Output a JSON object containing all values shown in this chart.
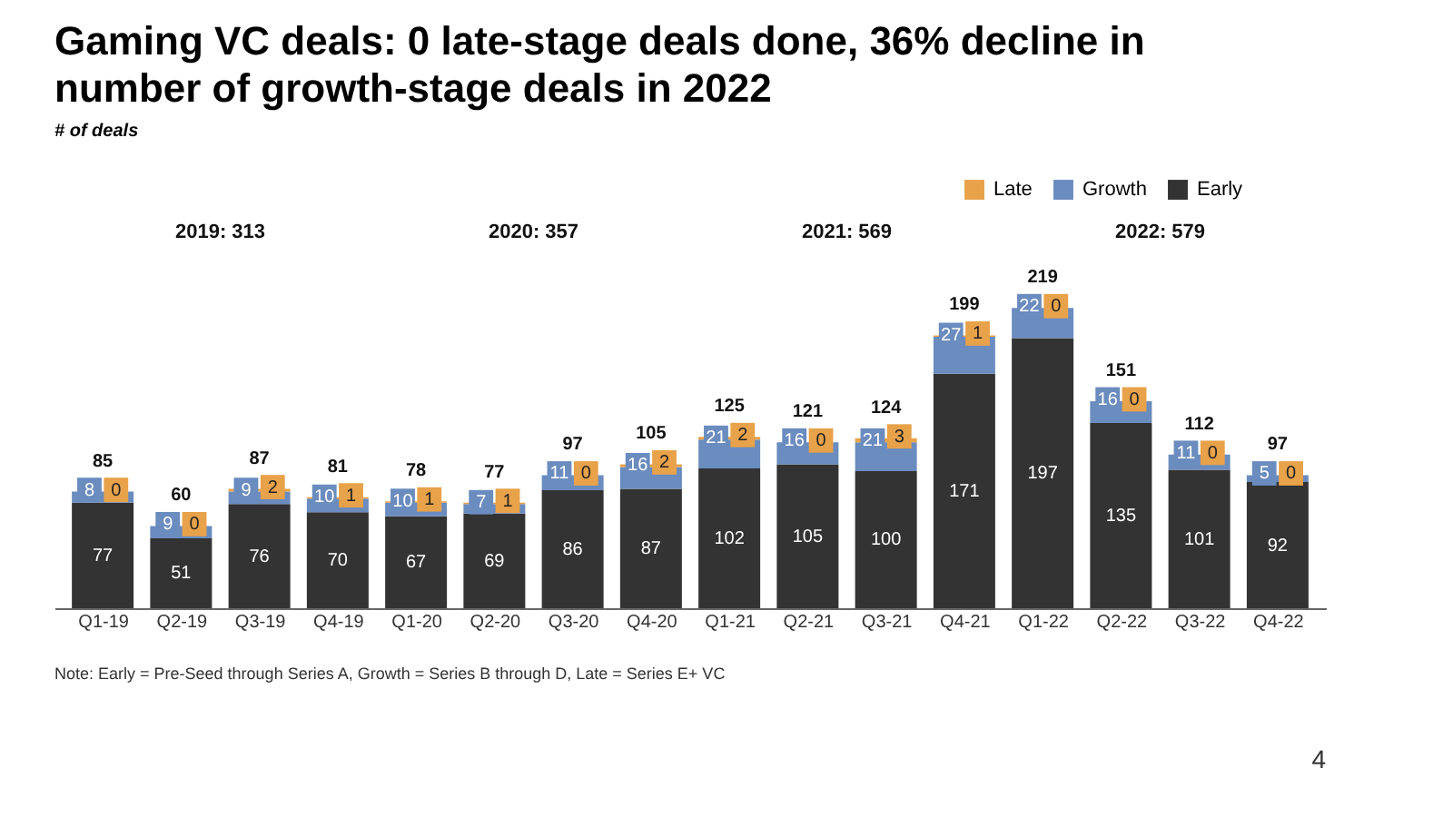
{
  "chart_data": {
    "type": "bar",
    "stacked": true,
    "title": "Gaming VC deals: 0 late-stage deals done, 36% decline in number of growth-stage deals in 2022",
    "subtitle": "# of deals",
    "categories": [
      "Q1-19",
      "Q2-19",
      "Q3-19",
      "Q4-19",
      "Q1-20",
      "Q2-20",
      "Q3-20",
      "Q4-20",
      "Q1-21",
      "Q2-21",
      "Q3-21",
      "Q4-21",
      "Q1-22",
      "Q2-22",
      "Q3-22",
      "Q4-22"
    ],
    "series": [
      {
        "name": "Early",
        "color": "#333333",
        "values": [
          77,
          51,
          76,
          70,
          67,
          69,
          86,
          87,
          102,
          105,
          100,
          171,
          197,
          135,
          101,
          92
        ]
      },
      {
        "name": "Growth",
        "color": "#6a8cbf",
        "values": [
          8,
          9,
          9,
          10,
          10,
          7,
          11,
          16,
          21,
          16,
          21,
          27,
          22,
          16,
          11,
          5
        ]
      },
      {
        "name": "Late",
        "color": "#e8a24a",
        "values": [
          0,
          0,
          2,
          1,
          1,
          1,
          0,
          2,
          2,
          0,
          3,
          1,
          0,
          0,
          0,
          0
        ]
      }
    ],
    "totals": [
      "85",
      "60",
      "87",
      "81",
      "78",
      "77",
      "97",
      "105",
      "125",
      "121",
      "124",
      "199",
      "219",
      "151",
      "112",
      "97"
    ],
    "data_labels": true,
    "legend": "top right",
    "grid": false,
    "annotations": [
      "2019: 313",
      "2020: 357",
      "2021: 569",
      "2022: 579",
      "Note: Early = Pre-Seed through Series A, Growth = Series B through D, Late = Series E+ VC",
      "4"
    ]
  }
}
